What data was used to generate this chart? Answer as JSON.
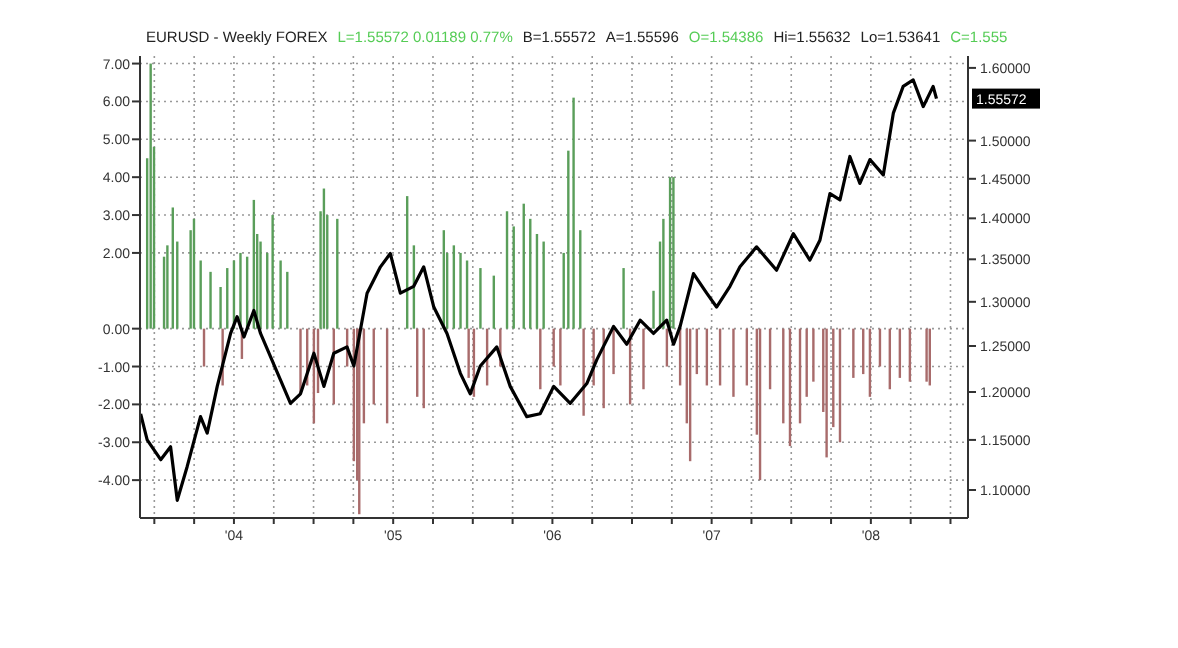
{
  "chart_data": {
    "type": "bar",
    "title": "EURUSD - Weekly  FOREX",
    "annotations": [
      "L=1.55572  0.01189  0.77%",
      "B=1.55572",
      "A=1.55596",
      "O=1.54386",
      "Hi=1.55632",
      "Lo=1.53641",
      "C=1.555",
      "1.55572"
    ],
    "xlim": [
      2003.41,
      2008.61
    ],
    "xticks": [
      {
        "value": 2003.5,
        "label": null
      },
      {
        "value": 2003.75,
        "label": null
      },
      {
        "value": 2004,
        "label": "'04"
      },
      {
        "value": 2004.25,
        "label": null
      },
      {
        "value": 2004.5,
        "label": null
      },
      {
        "value": 2004.75,
        "label": null
      },
      {
        "value": 2005,
        "label": "'05"
      },
      {
        "value": 2005.25,
        "label": null
      },
      {
        "value": 2005.5,
        "label": null
      },
      {
        "value": 2005.75,
        "label": null
      },
      {
        "value": 2006,
        "label": "'06"
      },
      {
        "value": 2006.25,
        "label": null
      },
      {
        "value": 2006.5,
        "label": null
      },
      {
        "value": 2006.75,
        "label": null
      },
      {
        "value": 2007,
        "label": "'07"
      },
      {
        "value": 2007.25,
        "label": null
      },
      {
        "value": 2007.5,
        "label": null
      },
      {
        "value": 2007.75,
        "label": null
      },
      {
        "value": 2008,
        "label": "'08"
      },
      {
        "value": 2008.25,
        "label": null
      },
      {
        "value": 2008.5,
        "label": null
      }
    ],
    "ylim": [
      -5,
      7.2
    ],
    "yticks": [
      {
        "value": 7,
        "label": "7.00"
      },
      {
        "value": 6,
        "label": "6.00"
      },
      {
        "value": 5,
        "label": "5.00"
      },
      {
        "value": 4,
        "label": "4.00"
      },
      {
        "value": 3,
        "label": "3.00"
      },
      {
        "value": 2,
        "label": "2.00"
      },
      {
        "value": 0,
        "label": "0.00"
      },
      {
        "value": -1,
        "label": "-1.00"
      },
      {
        "value": -2,
        "label": "-2.00"
      },
      {
        "value": -3,
        "label": "-3.00"
      },
      {
        "value": -4,
        "label": "-4.00"
      }
    ],
    "y2lim": [
      1.073,
      1.617
    ],
    "y2ticks": [
      {
        "value": 1.1,
        "label": "1.10000"
      },
      {
        "value": 1.15,
        "label": "1.15000"
      },
      {
        "value": 1.2,
        "label": "1.20000"
      },
      {
        "value": 1.25,
        "label": "1.25000"
      },
      {
        "value": 1.3,
        "label": "1.30000"
      },
      {
        "value": 1.35,
        "label": "1.35000"
      },
      {
        "value": 1.4,
        "label": "1.40000"
      },
      {
        "value": 1.45,
        "label": "1.45000"
      },
      {
        "value": 1.5,
        "label": "1.50000"
      },
      {
        "value": 1.6,
        "label": "1.60000"
      }
    ],
    "log": "y2",
    "grid": true,
    "series": [
      {
        "color": "#5a9e5a",
        "x": [
          2003.455,
          2003.477,
          2003.498,
          2003.561,
          2003.582,
          2003.616,
          2003.644,
          2003.728,
          2003.749,
          2003.791,
          2003.853,
          2003.916,
          2003.958,
          2004.0,
          2004.041,
          2004.083,
          2004.125,
          2004.146,
          2004.167,
          2004.209,
          2004.243,
          2004.293,
          2004.335,
          2004.544,
          2004.565,
          2004.586,
          2004.649,
          2005.088,
          2005.13,
          2005.318,
          2005.339,
          2005.381,
          2005.423,
          2005.464,
          2005.548,
          2005.632,
          2005.715,
          2005.757,
          2005.82,
          2005.861,
          2005.903,
          2005.945,
          2006.071,
          2006.1,
          2006.133,
          2006.175,
          2006.447,
          2006.635,
          2006.676,
          2006.697,
          2006.739,
          2006.76
        ],
        "values": [
          4.5,
          7.0,
          4.8,
          1.9,
          2.2,
          3.2,
          2.3,
          2.6,
          2.9,
          1.8,
          1.5,
          1.1,
          1.6,
          1.8,
          2.0,
          1.9,
          3.4,
          2.5,
          2.3,
          2.0,
          3.0,
          1.8,
          1.5,
          3.1,
          3.7,
          3.0,
          2.9,
          3.5,
          2.2,
          2.6,
          2.0,
          2.2,
          2.0,
          1.8,
          1.6,
          1.4,
          3.1,
          2.7,
          3.3,
          2.9,
          2.5,
          2.3,
          2.0,
          4.7,
          6.1,
          2.6,
          1.6,
          1.0,
          2.3,
          2.9,
          4.0,
          4.0
        ]
      },
      {
        "color": "#a86b6b",
        "x": [
          2003.812,
          2003.929,
          2004.05,
          2004.418,
          2004.46,
          2004.502,
          2004.528,
          2004.627,
          2004.711,
          2004.753,
          2004.774,
          2004.787,
          2004.816,
          2004.878,
          2004.962,
          2005.151,
          2005.192,
          2005.474,
          2005.507,
          2005.59,
          2005.673,
          2005.924,
          2006.008,
          2006.05,
          2006.196,
          2006.259,
          2006.322,
          2006.384,
          2006.488,
          2006.572,
          2006.719,
          2006.802,
          2006.844,
          2006.865,
          2006.907,
          2006.97,
          2007.053,
          2007.137,
          2007.221,
          2007.284,
          2007.304,
          2007.367,
          2007.45,
          2007.492,
          2007.555,
          2007.597,
          2007.639,
          2007.701,
          2007.722,
          2007.764,
          2007.806,
          2007.89,
          2007.952,
          2007.994,
          2008.057,
          2008.119,
          2008.182,
          2008.245,
          2008.35,
          2008.37
        ],
        "values": [
          -1.0,
          -1.5,
          -0.8,
          -1.7,
          -1.5,
          -2.5,
          -1.7,
          -2.0,
          -1.0,
          -3.5,
          -4.0,
          -4.9,
          -2.5,
          -2.0,
          -2.5,
          -1.8,
          -2.1,
          -1.3,
          -1.8,
          -1.5,
          -1.0,
          -1.6,
          -1.0,
          -1.5,
          -2.3,
          -1.5,
          -2.1,
          -1.2,
          -2.0,
          -1.6,
          -1.0,
          -1.5,
          -2.5,
          -3.5,
          -1.2,
          -1.5,
          -1.5,
          -1.8,
          -1.5,
          -2.8,
          -4.0,
          -1.6,
          -2.5,
          -3.1,
          -2.5,
          -1.8,
          -1.4,
          -2.2,
          -3.4,
          -2.6,
          -3.0,
          -1.3,
          -1.2,
          -1.8,
          -1.0,
          -1.6,
          -1.3,
          -1.4,
          -1.4,
          -1.5
        ]
      },
      {
        "type": "line",
        "axis": "y2",
        "color": "#000000",
        "x": [
          2003.414,
          2003.455,
          2003.54,
          2003.602,
          2003.644,
          2003.706,
          2003.79,
          2003.832,
          2003.895,
          2003.979,
          2004.02,
          2004.063,
          2004.125,
          2004.167,
          2004.292,
          2004.355,
          2004.418,
          2004.502,
          2004.565,
          2004.627,
          2004.71,
          2004.753,
          2004.836,
          2004.92,
          2004.982,
          2005.045,
          2005.129,
          2005.192,
          2005.255,
          2005.338,
          2005.422,
          2005.484,
          2005.547,
          2005.651,
          2005.735,
          2005.839,
          2005.923,
          2006.008,
          2006.112,
          2006.216,
          2006.279,
          2006.384,
          2006.467,
          2006.551,
          2006.635,
          2006.718,
          2006.761,
          2006.802,
          2006.886,
          2006.969,
          2007.031,
          2007.115,
          2007.178,
          2007.282,
          2007.408,
          2007.513,
          2007.617,
          2007.68,
          2007.743,
          2007.806,
          2007.868,
          2007.931,
          2007.994,
          2008.078,
          2008.141,
          2008.203,
          2008.266,
          2008.329,
          2008.391,
          2008.412
        ],
        "values": [
          1.177,
          1.15,
          1.13,
          1.143,
          1.09,
          1.123,
          1.174,
          1.157,
          1.206,
          1.264,
          1.283,
          1.26,
          1.29,
          1.264,
          1.213,
          1.188,
          1.198,
          1.242,
          1.206,
          1.242,
          1.249,
          1.228,
          1.31,
          1.341,
          1.357,
          1.31,
          1.318,
          1.341,
          1.294,
          1.264,
          1.22,
          1.198,
          1.228,
          1.249,
          1.206,
          1.174,
          1.177,
          1.206,
          1.188,
          1.209,
          1.235,
          1.272,
          1.252,
          1.279,
          1.264,
          1.279,
          1.252,
          1.272,
          1.333,
          1.31,
          1.294,
          1.318,
          1.341,
          1.365,
          1.337,
          1.381,
          1.349,
          1.373,
          1.431,
          1.423,
          1.479,
          1.444,
          1.475,
          1.455,
          1.537,
          1.574,
          1.583,
          1.546,
          1.574,
          1.557
        ]
      }
    ]
  }
}
